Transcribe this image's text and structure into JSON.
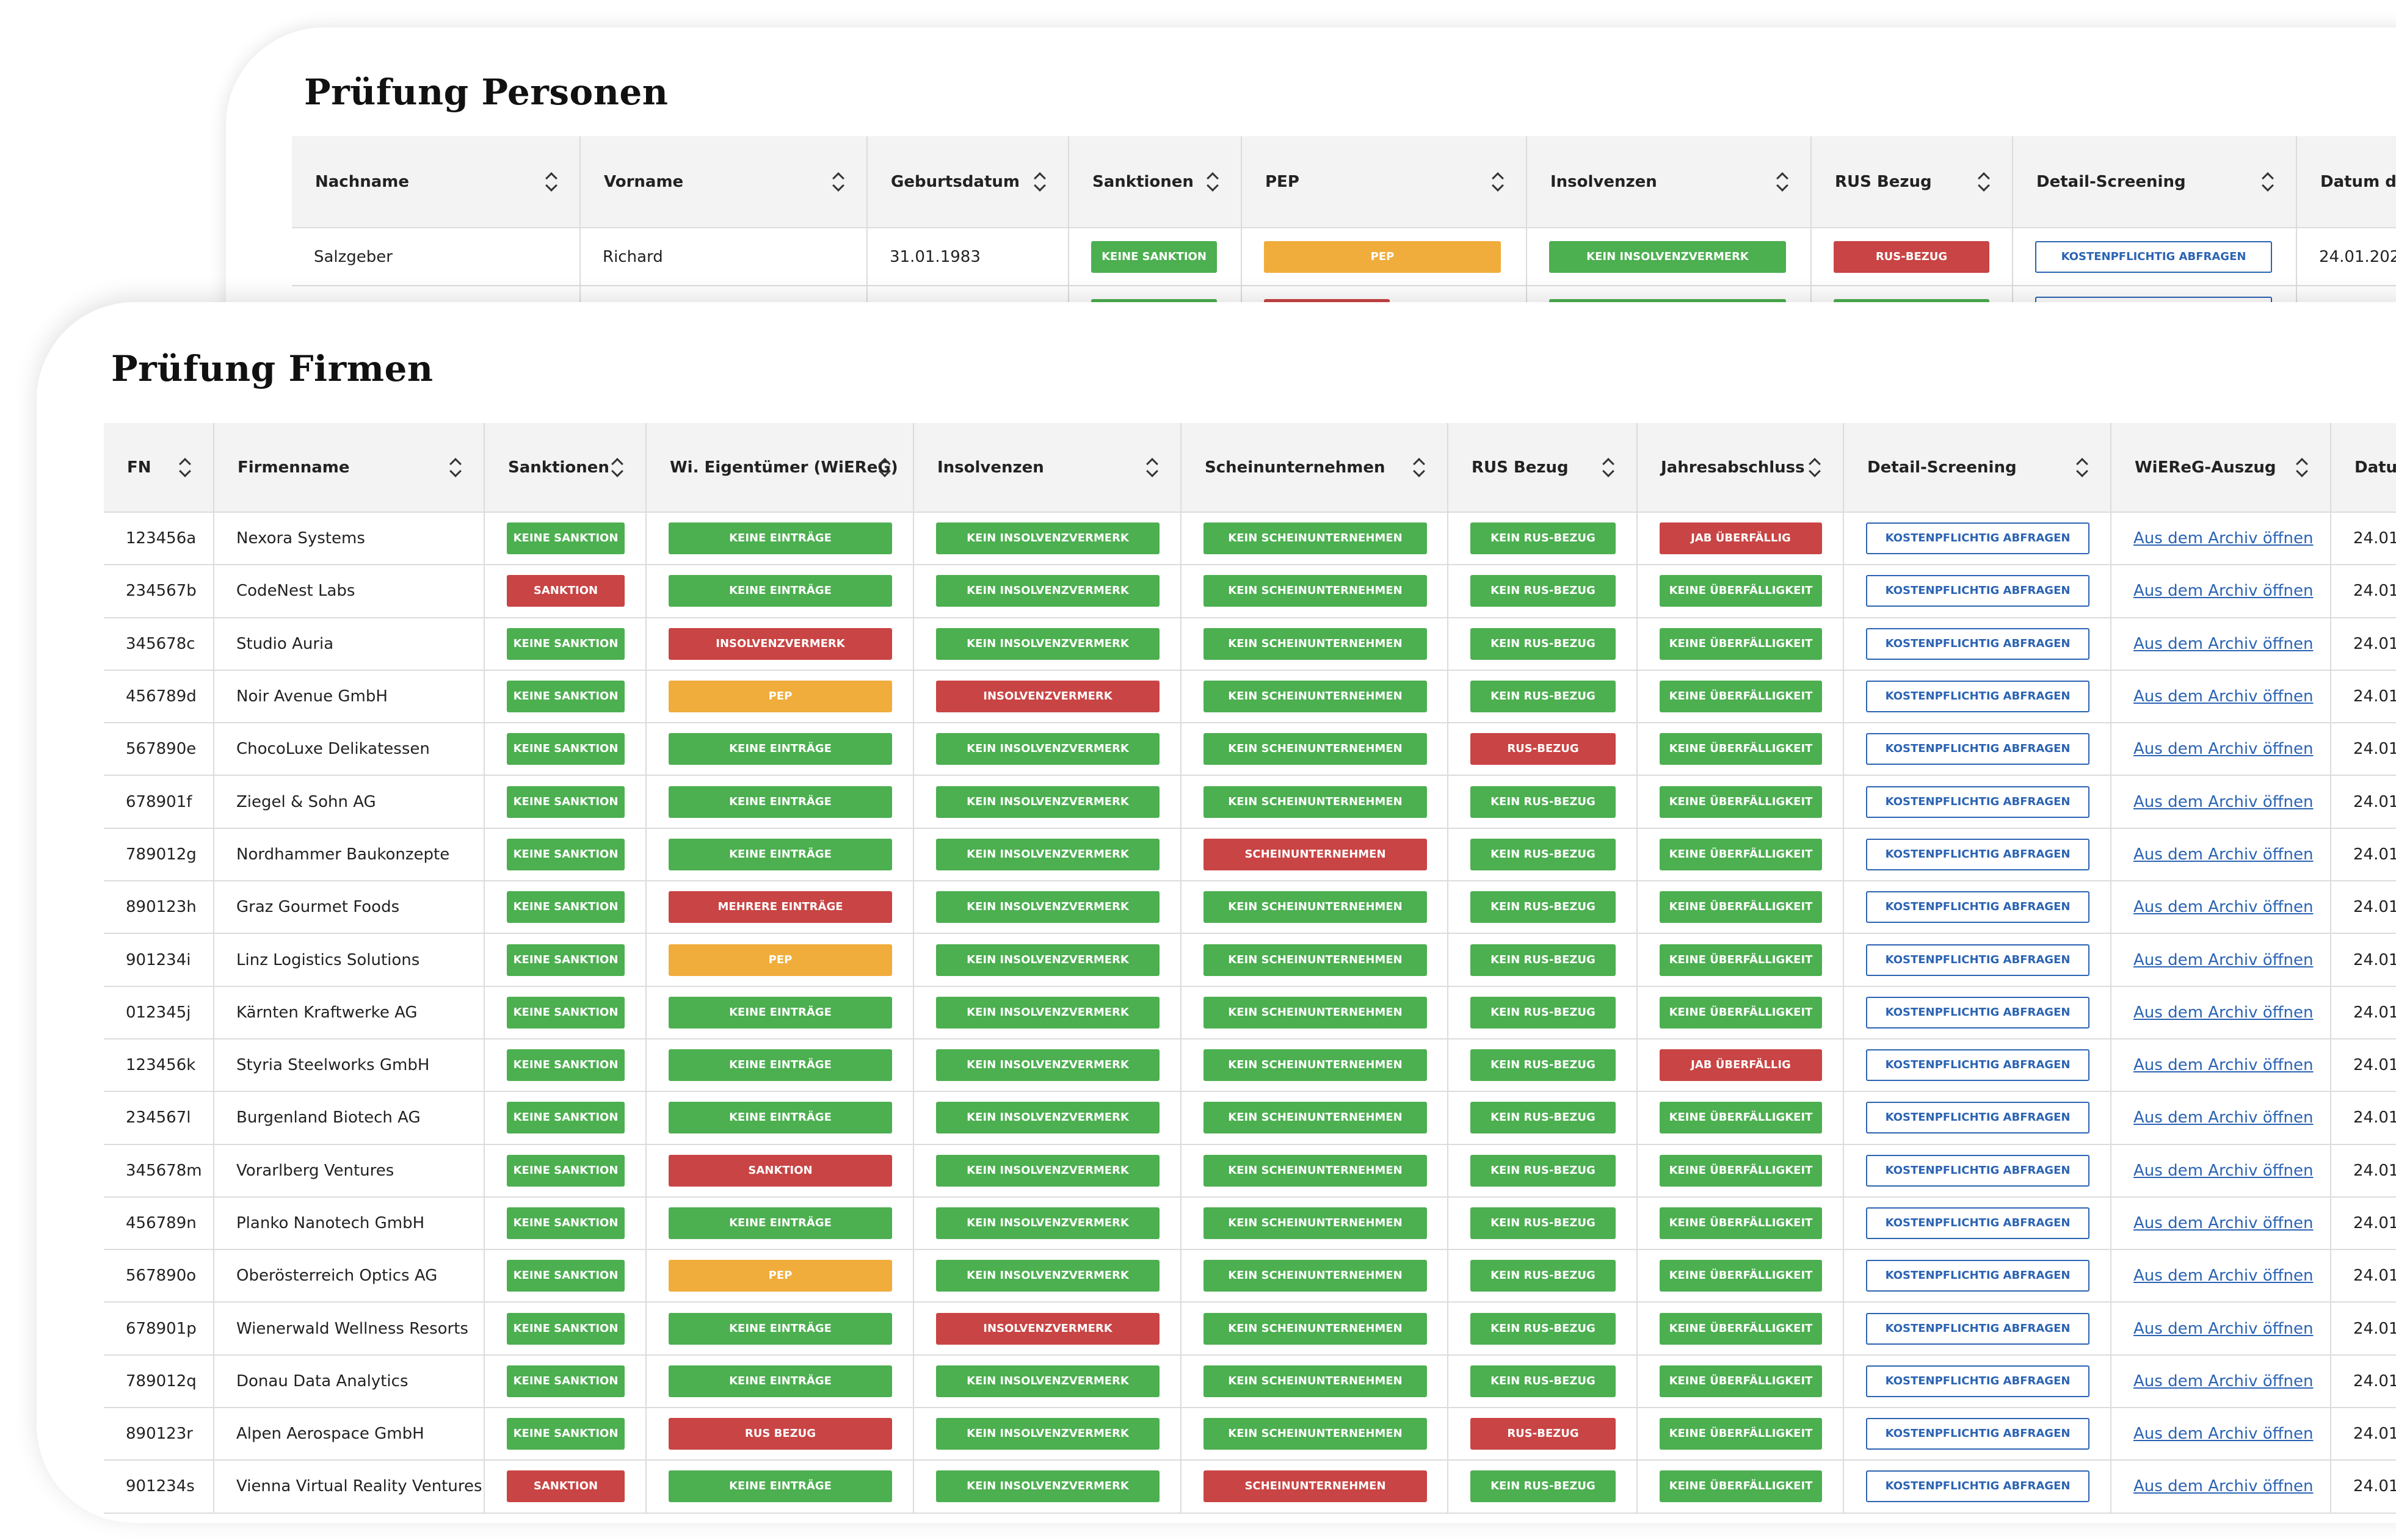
{
  "persons": {
    "title": "Prüfung Personen",
    "headers": [
      "Nachname",
      "Vorname",
      "Geburtsdatum",
      "Sanktionen",
      "PEP",
      "Insolvenzen",
      "RUS Bezug",
      "Detail-Screening",
      "Datum de"
    ],
    "row": {
      "nachname": "Salzgeber",
      "vorname": "Richard",
      "geburtsdatum": "31.01.1983",
      "sanktion": {
        "label": "KEINE SANKTION",
        "status": "green"
      },
      "pep": {
        "label": "PEP",
        "status": "orange"
      },
      "insolvenz": {
        "label": "KEIN INSOLVENZVERMERK",
        "status": "green"
      },
      "rus": {
        "label": "RUS-BEZUG",
        "status": "red"
      },
      "detail": "KOSTENPFLICHTIG ABFRAGEN",
      "datum": "24.01.202"
    }
  },
  "firms": {
    "title": "Prüfung Firmen",
    "headers": [
      "FN",
      "Firmenname",
      "Sanktionen",
      "Wi. Eigentümer (WiEReG)",
      "Insolvenzen",
      "Scheinunternehmen",
      "RUS Bezug",
      "Jahresabschluss",
      "Detail-Screening",
      "WiEReG-Auszug",
      "Datu"
    ],
    "detail_label": "KOSTENPFLICHTIG ABFRAGEN",
    "archive_label": "Aus dem Archiv öffnen",
    "date_label": "24.01",
    "rows": [
      {
        "fn": "123456a",
        "name": "Nexora Systems",
        "s": [
          "KEINE SANKTION",
          "g"
        ],
        "w": [
          "KEINE EINTRÄGE",
          "g"
        ],
        "i": [
          "KEIN INSOLVENZVERMERK",
          "g"
        ],
        "sc": [
          "KEIN SCHEINUNTERNEHMEN",
          "g"
        ],
        "ru": [
          "KEIN RUS-BEZUG",
          "g"
        ],
        "j": [
          "JAB ÜBERFÄLLIG",
          "r"
        ]
      },
      {
        "fn": "234567b",
        "name": "CodeNest Labs",
        "s": [
          "SANKTION",
          "r"
        ],
        "w": [
          "KEINE EINTRÄGE",
          "g"
        ],
        "i": [
          "KEIN INSOLVENZVERMERK",
          "g"
        ],
        "sc": [
          "KEIN SCHEINUNTERNEHMEN",
          "g"
        ],
        "ru": [
          "KEIN RUS-BEZUG",
          "g"
        ],
        "j": [
          "KEINE ÜBERFÄLLIGKEIT",
          "g"
        ]
      },
      {
        "fn": "345678c",
        "name": "Studio Auria",
        "s": [
          "KEINE SANKTION",
          "g"
        ],
        "w": [
          "INSOLVENZVERMERK",
          "r"
        ],
        "i": [
          "KEIN INSOLVENZVERMERK",
          "g"
        ],
        "sc": [
          "KEIN SCHEINUNTERNEHMEN",
          "g"
        ],
        "ru": [
          "KEIN RUS-BEZUG",
          "g"
        ],
        "j": [
          "KEINE ÜBERFÄLLIGKEIT",
          "g"
        ]
      },
      {
        "fn": "456789d",
        "name": "Noir Avenue GmbH",
        "s": [
          "KEINE SANKTION",
          "g"
        ],
        "w": [
          "PEP",
          "o"
        ],
        "i": [
          "INSOLVENZVERMERK",
          "r"
        ],
        "sc": [
          "KEIN SCHEINUNTERNEHMEN",
          "g"
        ],
        "ru": [
          "KEIN RUS-BEZUG",
          "g"
        ],
        "j": [
          "KEINE ÜBERFÄLLIGKEIT",
          "g"
        ]
      },
      {
        "fn": "567890e",
        "name": "ChocoLuxe Delikatessen",
        "s": [
          "KEINE SANKTION",
          "g"
        ],
        "w": [
          "KEINE EINTRÄGE",
          "g"
        ],
        "i": [
          "KEIN INSOLVENZVERMERK",
          "g"
        ],
        "sc": [
          "KEIN SCHEINUNTERNEHMEN",
          "g"
        ],
        "ru": [
          "RUS-BEZUG",
          "r"
        ],
        "j": [
          "KEINE ÜBERFÄLLIGKEIT",
          "g"
        ]
      },
      {
        "fn": "678901f",
        "name": "Ziegel & Sohn AG",
        "s": [
          "KEINE SANKTION",
          "g"
        ],
        "w": [
          "KEINE EINTRÄGE",
          "g"
        ],
        "i": [
          "KEIN INSOLVENZVERMERK",
          "g"
        ],
        "sc": [
          "KEIN SCHEINUNTERNEHMEN",
          "g"
        ],
        "ru": [
          "KEIN RUS-BEZUG",
          "g"
        ],
        "j": [
          "KEINE ÜBERFÄLLIGKEIT",
          "g"
        ]
      },
      {
        "fn": "789012g",
        "name": "Nordhammer Baukonzepte",
        "s": [
          "KEINE SANKTION",
          "g"
        ],
        "w": [
          "KEINE EINTRÄGE",
          "g"
        ],
        "i": [
          "KEIN INSOLVENZVERMERK",
          "g"
        ],
        "sc": [
          "SCHEINUNTERNEHMEN",
          "r"
        ],
        "ru": [
          "KEIN RUS-BEZUG",
          "g"
        ],
        "j": [
          "KEINE ÜBERFÄLLIGKEIT",
          "g"
        ]
      },
      {
        "fn": "890123h",
        "name": "Graz Gourmet Foods",
        "s": [
          "KEINE SANKTION",
          "g"
        ],
        "w": [
          "MEHRERE EINTRÄGE",
          "r"
        ],
        "i": [
          "KEIN INSOLVENZVERMERK",
          "g"
        ],
        "sc": [
          "KEIN SCHEINUNTERNEHMEN",
          "g"
        ],
        "ru": [
          "KEIN RUS-BEZUG",
          "g"
        ],
        "j": [
          "KEINE ÜBERFÄLLIGKEIT",
          "g"
        ]
      },
      {
        "fn": "901234i",
        "name": "Linz Logistics Solutions",
        "s": [
          "KEINE SANKTION",
          "g"
        ],
        "w": [
          "PEP",
          "o"
        ],
        "i": [
          "KEIN INSOLVENZVERMERK",
          "g"
        ],
        "sc": [
          "KEIN SCHEINUNTERNEHMEN",
          "g"
        ],
        "ru": [
          "KEIN RUS-BEZUG",
          "g"
        ],
        "j": [
          "KEINE ÜBERFÄLLIGKEIT",
          "g"
        ]
      },
      {
        "fn": "012345j",
        "name": "Kärnten Kraftwerke AG",
        "s": [
          "KEINE SANKTION",
          "g"
        ],
        "w": [
          "KEINE EINTRÄGE",
          "g"
        ],
        "i": [
          "KEIN INSOLVENZVERMERK",
          "g"
        ],
        "sc": [
          "KEIN SCHEINUNTERNEHMEN",
          "g"
        ],
        "ru": [
          "KEIN RUS-BEZUG",
          "g"
        ],
        "j": [
          "KEINE ÜBERFÄLLIGKEIT",
          "g"
        ]
      },
      {
        "fn": "123456k",
        "name": "Styria Steelworks GmbH",
        "s": [
          "KEINE SANKTION",
          "g"
        ],
        "w": [
          "KEINE EINTRÄGE",
          "g"
        ],
        "i": [
          "KEIN INSOLVENZVERMERK",
          "g"
        ],
        "sc": [
          "KEIN SCHEINUNTERNEHMEN",
          "g"
        ],
        "ru": [
          "KEIN RUS-BEZUG",
          "g"
        ],
        "j": [
          "JAB ÜBERFÄLLIG",
          "r"
        ]
      },
      {
        "fn": "234567l",
        "name": "Burgenland Biotech AG",
        "s": [
          "KEINE SANKTION",
          "g"
        ],
        "w": [
          "KEINE EINTRÄGE",
          "g"
        ],
        "i": [
          "KEIN INSOLVENZVERMERK",
          "g"
        ],
        "sc": [
          "KEIN SCHEINUNTERNEHMEN",
          "g"
        ],
        "ru": [
          "KEIN RUS-BEZUG",
          "g"
        ],
        "j": [
          "KEINE ÜBERFÄLLIGKEIT",
          "g"
        ]
      },
      {
        "fn": "345678m",
        "name": "Vorarlberg Ventures",
        "s": [
          "KEINE SANKTION",
          "g"
        ],
        "w": [
          "SANKTION",
          "r"
        ],
        "i": [
          "KEIN INSOLVENZVERMERK",
          "g"
        ],
        "sc": [
          "KEIN SCHEINUNTERNEHMEN",
          "g"
        ],
        "ru": [
          "KEIN RUS-BEZUG",
          "g"
        ],
        "j": [
          "KEINE ÜBERFÄLLIGKEIT",
          "g"
        ]
      },
      {
        "fn": "456789n",
        "name": "Planko Nanotech GmbH",
        "s": [
          "KEINE SANKTION",
          "g"
        ],
        "w": [
          "KEINE EINTRÄGE",
          "g"
        ],
        "i": [
          "KEIN INSOLVENZVERMERK",
          "g"
        ],
        "sc": [
          "KEIN SCHEINUNTERNEHMEN",
          "g"
        ],
        "ru": [
          "KEIN RUS-BEZUG",
          "g"
        ],
        "j": [
          "KEINE ÜBERFÄLLIGKEIT",
          "g"
        ]
      },
      {
        "fn": "567890o",
        "name": "Oberösterreich Optics AG",
        "s": [
          "KEINE SANKTION",
          "g"
        ],
        "w": [
          "PEP",
          "o"
        ],
        "i": [
          "KEIN INSOLVENZVERMERK",
          "g"
        ],
        "sc": [
          "KEIN SCHEINUNTERNEHMEN",
          "g"
        ],
        "ru": [
          "KEIN RUS-BEZUG",
          "g"
        ],
        "j": [
          "KEINE ÜBERFÄLLIGKEIT",
          "g"
        ]
      },
      {
        "fn": "678901p",
        "name": "Wienerwald Wellness Resorts",
        "s": [
          "KEINE SANKTION",
          "g"
        ],
        "w": [
          "KEINE EINTRÄGE",
          "g"
        ],
        "i": [
          "INSOLVENZVERMERK",
          "r"
        ],
        "sc": [
          "KEIN SCHEINUNTERNEHMEN",
          "g"
        ],
        "ru": [
          "KEIN RUS-BEZUG",
          "g"
        ],
        "j": [
          "KEINE ÜBERFÄLLIGKEIT",
          "g"
        ]
      },
      {
        "fn": "789012q",
        "name": "Donau Data Analytics",
        "s": [
          "KEINE SANKTION",
          "g"
        ],
        "w": [
          "KEINE EINTRÄGE",
          "g"
        ],
        "i": [
          "KEIN INSOLVENZVERMERK",
          "g"
        ],
        "sc": [
          "KEIN SCHEINUNTERNEHMEN",
          "g"
        ],
        "ru": [
          "KEIN RUS-BEZUG",
          "g"
        ],
        "j": [
          "KEINE ÜBERFÄLLIGKEIT",
          "g"
        ]
      },
      {
        "fn": "890123r",
        "name": "Alpen Aerospace GmbH",
        "s": [
          "KEINE SANKTION",
          "g"
        ],
        "w": [
          "RUS BEZUG",
          "r"
        ],
        "i": [
          "KEIN INSOLVENZVERMERK",
          "g"
        ],
        "sc": [
          "KEIN SCHEINUNTERNEHMEN",
          "g"
        ],
        "ru": [
          "RUS-BEZUG",
          "r"
        ],
        "j": [
          "KEINE ÜBERFÄLLIGKEIT",
          "g"
        ]
      },
      {
        "fn": "901234s",
        "name": "Vienna Virtual Reality Ventures",
        "s": [
          "SANKTION",
          "r"
        ],
        "w": [
          "KEINE EINTRÄGE",
          "g"
        ],
        "i": [
          "KEIN INSOLVENZVERMERK",
          "g"
        ],
        "sc": [
          "SCHEINUNTERNEHMEN",
          "r"
        ],
        "ru": [
          "KEIN RUS-BEZUG",
          "g"
        ],
        "j": [
          "KEINE ÜBERFÄLLIGKEIT",
          "g"
        ]
      }
    ]
  }
}
